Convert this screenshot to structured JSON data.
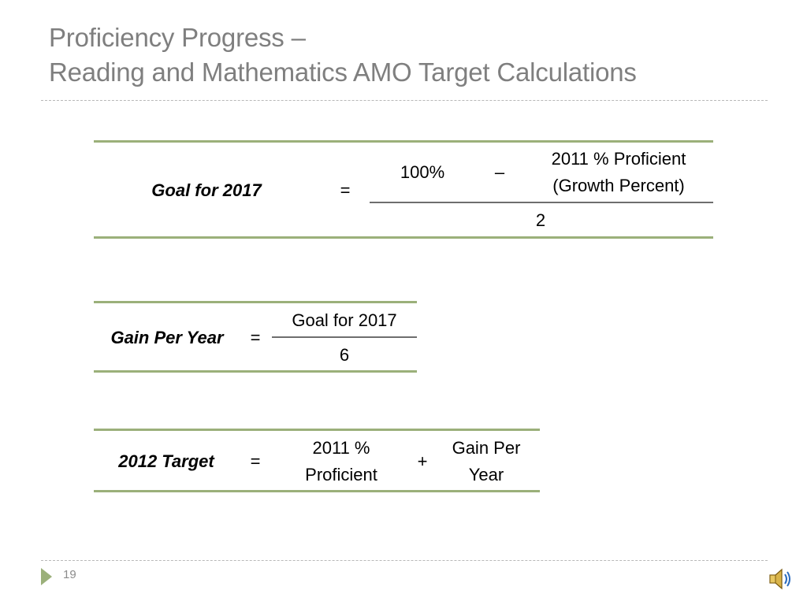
{
  "slide": {
    "title_line1": "Proficiency Progress –",
    "title_line2": "Reading and Mathematics AMO Target Calculations",
    "page_number": "19"
  },
  "formula1": {
    "label": "Goal for 2017",
    "equals": "=",
    "term1": "100%",
    "operator": "–",
    "term2_line1": "2011 % Proficient",
    "term2_line2": "(Growth Percent)",
    "denominator": "2"
  },
  "formula2": {
    "label": "Gain Per Year",
    "equals": "=",
    "numerator": "Goal for 2017",
    "denominator": "6"
  },
  "formula3": {
    "label": "2012 Target",
    "equals": "=",
    "term1_line1": "2011 %",
    "term1_line2": "Proficient",
    "operator": "+",
    "term2_line1": "Gain Per",
    "term2_line2": "Year"
  },
  "icons": {
    "audio": "speaker-icon",
    "nav": "triangle-arrow-icon"
  },
  "colors": {
    "accent_green": "#9bb07a",
    "title_gray": "#7f7f7f"
  }
}
